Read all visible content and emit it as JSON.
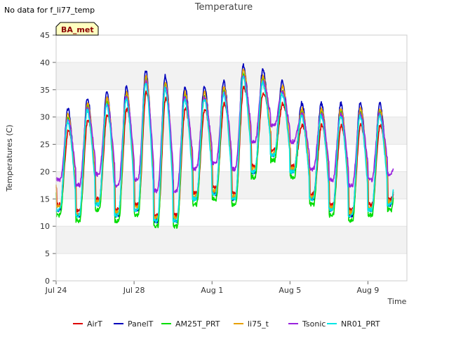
{
  "note": "No data for f_li77_temp",
  "badge": "BA_met",
  "colors": {
    "background": "#ffffff",
    "band": "#f2f2f2",
    "plot_border": "#cccccc",
    "badge_fill": "#ffffc0"
  },
  "chart_data": {
    "type": "line",
    "title": "Temperature",
    "xlabel": "Time",
    "ylabel": "Temperatures (C)",
    "ylim": [
      0,
      45
    ],
    "yticks": [
      0,
      5,
      10,
      15,
      20,
      25,
      30,
      35,
      40,
      45
    ],
    "xlim": [
      0,
      18
    ],
    "xticks": [
      {
        "value": 0,
        "label": "Jul 24"
      },
      {
        "value": 4,
        "label": "Jul 28"
      },
      {
        "value": 8,
        "label": "Aug 1"
      },
      {
        "value": 12,
        "label": "Aug 5"
      },
      {
        "value": 16,
        "label": "Aug 9"
      }
    ],
    "grid": "horizontal bands",
    "legend_position": "bottom",
    "daily": {
      "start_day": 0,
      "peak_phase": 0.6,
      "maxima": [
        30,
        32,
        33,
        34,
        37,
        36,
        34,
        34,
        35,
        38,
        37,
        35,
        31,
        31,
        31,
        31,
        31,
        30
      ],
      "minima": [
        13,
        12,
        14,
        12,
        13,
        11,
        11,
        15,
        16,
        15,
        20,
        23,
        20,
        15,
        13,
        12,
        13,
        14
      ],
      "end_day": 17.3
    },
    "series": [
      {
        "name": "AirT",
        "color": "#dd0000",
        "max_offset": -2.5,
        "min_offset": 1.0,
        "lag": 0.03
      },
      {
        "name": "PanelT",
        "color": "#0000bb",
        "max_offset": 1.5,
        "min_offset": 0.0,
        "lag": 0.0
      },
      {
        "name": "AM25T_PRT",
        "color": "#00dd00",
        "max_offset": 0.0,
        "min_offset": -1.0,
        "lag": 0.01
      },
      {
        "name": "li75_t",
        "color": "#e8a000",
        "max_offset": 0.5,
        "min_offset": 0.5,
        "lag": 0.01
      },
      {
        "name": "Tsonic",
        "color": "#9922dd",
        "max_offset": -0.5,
        "min_offset": 5.5,
        "lag": 0.0
      },
      {
        "name": "NR01_PRT",
        "color": "#00e5e5",
        "max_offset": -0.8,
        "min_offset": 0.0,
        "lag": -0.01
      }
    ]
  }
}
